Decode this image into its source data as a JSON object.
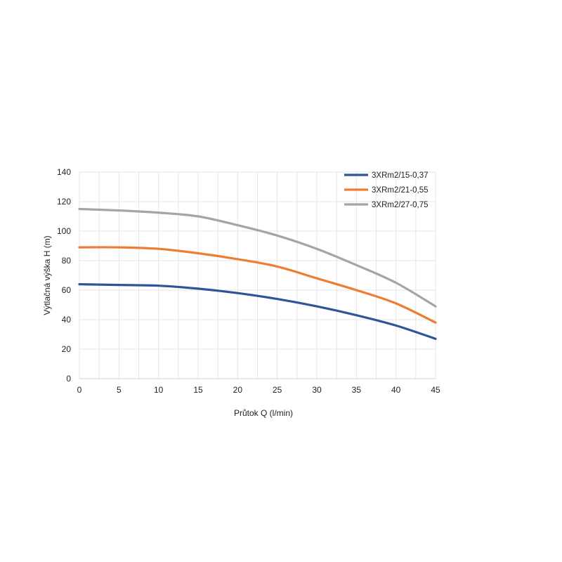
{
  "chart_data": {
    "type": "line",
    "title": "",
    "xlabel": "Průtok Q (l/min)",
    "ylabel": "Výtlačná výška H (m)",
    "xlim": [
      0,
      45
    ],
    "ylim": [
      0,
      140
    ],
    "xticks": [
      0,
      5,
      10,
      15,
      20,
      25,
      30,
      35,
      40,
      45
    ],
    "yticks": [
      0,
      20,
      40,
      60,
      80,
      100,
      120,
      140
    ],
    "grid": true,
    "legend_position": "top-right",
    "x": [
      0,
      5,
      10,
      15,
      20,
      25,
      30,
      35,
      40,
      45
    ],
    "series": [
      {
        "name": "3XRm2/15-0,37",
        "color": "#2e5597",
        "values": [
          64,
          63.5,
          63,
          61,
          58,
          54,
          49,
          43,
          36,
          27
        ]
      },
      {
        "name": "3XRm2/21-0,55",
        "color": "#ed7d31",
        "values": [
          89,
          89,
          88,
          85,
          81,
          76,
          68,
          60,
          51,
          38
        ]
      },
      {
        "name": "3XRm2/27-0,75",
        "color": "#a5a5a5",
        "values": [
          115,
          114,
          112.5,
          110,
          104,
          97,
          88,
          77,
          65,
          49
        ]
      }
    ]
  }
}
